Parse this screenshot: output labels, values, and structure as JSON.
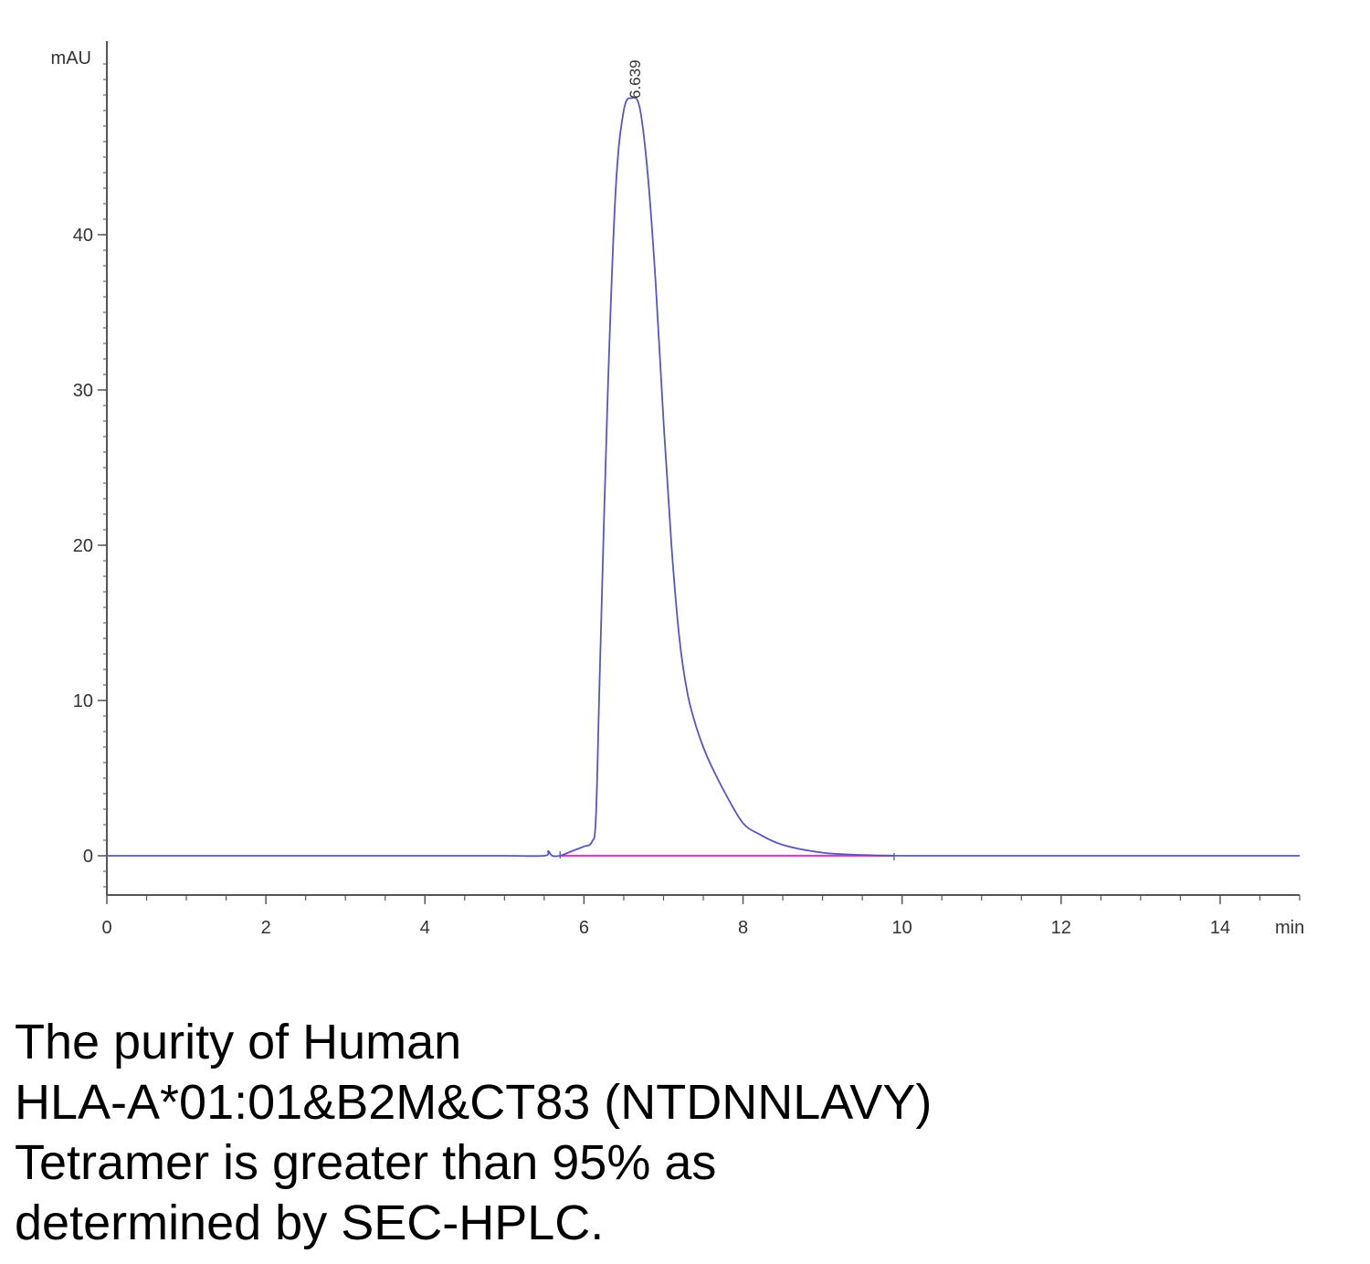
{
  "chart_data": {
    "type": "line",
    "title": "",
    "xlabel": "min",
    "ylabel": "mAU",
    "xlim": [
      0,
      15
    ],
    "ylim": [
      -2.5,
      52
    ],
    "x_ticks": [
      0,
      2,
      4,
      6,
      8,
      10,
      12,
      14
    ],
    "y_ticks": [
      0,
      10,
      20,
      30,
      40
    ],
    "grid": false,
    "peak_annotation": {
      "x": 6.639,
      "y": 48.6,
      "label": "6.639"
    },
    "series": [
      {
        "color": "#5558b8",
        "x": [
          0,
          1,
          2,
          3,
          4,
          5,
          5.5,
          5.55,
          5.6,
          5.7,
          5.8,
          5.9,
          6.0,
          6.1,
          6.15,
          6.2,
          6.3,
          6.4,
          6.5,
          6.6,
          6.7,
          6.8,
          6.9,
          7.0,
          7.1,
          7.2,
          7.3,
          7.4,
          7.5,
          7.6,
          7.8,
          8.0,
          8.2,
          8.5,
          9.0,
          9.5,
          10.0,
          11,
          12,
          13,
          14,
          15
        ],
        "y": [
          0,
          0,
          0,
          0,
          0,
          0,
          0,
          0.3,
          0,
          0,
          0.2,
          0.4,
          0.6,
          0.9,
          2.5,
          12,
          30,
          43,
          48,
          48.8,
          48.2,
          44,
          37,
          28,
          20,
          14,
          10.5,
          8.5,
          7,
          5.8,
          3.8,
          2.1,
          1.4,
          0.7,
          0.2,
          0.05,
          0,
          0,
          0,
          0,
          0,
          0
        ]
      },
      {
        "color": "#e040c8",
        "x": [
          5.7,
          6.0,
          7.0,
          8.0,
          9.0,
          9.9
        ],
        "y": [
          0,
          0,
          0,
          0,
          0,
          0
        ]
      }
    ]
  },
  "caption": {
    "lines": [
      "The purity of Human",
      "HLA-A*01:01&B2M&CT83 (NTDNNLAVY)",
      "Tetramer is greater than 95% as",
      "determined by SEC-HPLC."
    ]
  }
}
